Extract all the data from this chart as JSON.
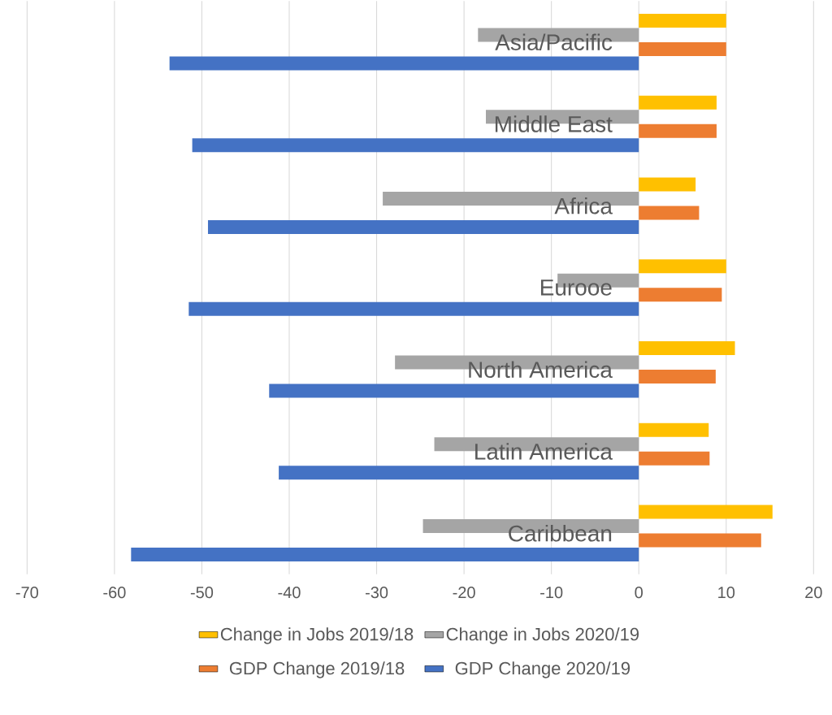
{
  "chart_data": {
    "type": "bar",
    "orientation": "horizontal",
    "categories": [
      "Asia/Pacific",
      "Middle East",
      "Africa",
      "Eurooe",
      "North America",
      "Latin America",
      "Caribbean"
    ],
    "series": [
      {
        "name": "Change in Jobs 2019/18",
        "color": "#ffc000",
        "values": [
          10,
          8.9,
          6.5,
          10,
          11,
          8,
          15.3
        ]
      },
      {
        "name": "Change in Jobs 2020/19",
        "color": "#a5a5a5",
        "values": [
          -18.4,
          -17.5,
          -29.3,
          -9.3,
          -27.9,
          -23.4,
          -24.7
        ]
      },
      {
        "name": "GDP Change 2019/18",
        "color": "#ed7d31",
        "values": [
          10,
          8.9,
          6.9,
          9.5,
          8.8,
          8.1,
          14
        ]
      },
      {
        "name": "GDP Change 2020/19",
        "color": "#4472c4",
        "values": [
          -53.7,
          -51.1,
          -49.3,
          -51.5,
          -42.3,
          -41.2,
          -58.1
        ]
      }
    ],
    "xlim": [
      -70,
      20
    ],
    "xticks": [
      -70,
      -60,
      -50,
      -40,
      -30,
      -20,
      -10,
      0,
      10,
      20
    ],
    "grid": "x",
    "legend": "bottom"
  }
}
